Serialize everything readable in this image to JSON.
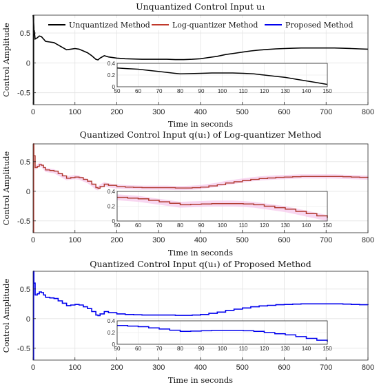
{
  "figure": {
    "panels": [
      {
        "title": "Unquantized Control Input u₁",
        "series_key": "unquantized"
      },
      {
        "title": "Quantized Control Input q(u₁) of Log-quantizer Method",
        "series_key": "log"
      },
      {
        "title": "Quantized Control Input q(u₁) of Proposed Method",
        "series_key": "proposed"
      }
    ]
  },
  "chart_data": [
    {
      "type": "line",
      "title": "Unquantized Control Input u₁",
      "xlabel": "Time in seconds",
      "ylabel": "Control Amplitude",
      "xlim": [
        0,
        800
      ],
      "ylim": [
        -0.7,
        0.8
      ],
      "xticks": [
        0,
        100,
        200,
        300,
        400,
        500,
        600,
        700,
        800
      ],
      "yticks": [
        -0.5,
        0,
        0.5
      ],
      "grid": true,
      "legend": {
        "placement": "top",
        "entries": [
          {
            "name": "Unquantized Method",
            "color": "#000000"
          },
          {
            "name": "Log-quantizer Method",
            "color": "#c0392b"
          },
          {
            "name": "Proposed Method",
            "color": "#0000ee"
          }
        ]
      },
      "series": [
        {
          "name": "Unquantized Method",
          "color": "#000000",
          "x": [
            0,
            2,
            5,
            10,
            15,
            20,
            25,
            30,
            40,
            50,
            60,
            70,
            80,
            90,
            100,
            110,
            120,
            130,
            140,
            150,
            155,
            160,
            170,
            180,
            200,
            220,
            240,
            260,
            280,
            300,
            320,
            340,
            360,
            380,
            400,
            420,
            440,
            460,
            480,
            500,
            520,
            540,
            560,
            580,
            600,
            620,
            640,
            660,
            680,
            700,
            720,
            740,
            760,
            780,
            800
          ],
          "y": [
            0.8,
            0.6,
            0.4,
            0.42,
            0.45,
            0.44,
            0.4,
            0.36,
            0.35,
            0.34,
            0.3,
            0.26,
            0.22,
            0.23,
            0.24,
            0.23,
            0.2,
            0.17,
            0.12,
            0.06,
            0.05,
            0.08,
            0.12,
            0.1,
            0.08,
            0.07,
            0.065,
            0.06,
            0.06,
            0.06,
            0.06,
            0.055,
            0.055,
            0.06,
            0.07,
            0.09,
            0.11,
            0.14,
            0.16,
            0.18,
            0.2,
            0.215,
            0.225,
            0.235,
            0.24,
            0.245,
            0.25,
            0.25,
            0.25,
            0.25,
            0.25,
            0.245,
            0.24,
            0.235,
            0.23
          ]
        }
      ],
      "inset": {
        "xlim": [
          50,
          150
        ],
        "ylim": [
          0,
          0.4
        ],
        "xticks": [
          50,
          60,
          70,
          80,
          90,
          100,
          110,
          120,
          130,
          140,
          150
        ],
        "yticks": [
          0,
          0.2,
          0.4
        ],
        "x": [
          50,
          55,
          60,
          65,
          70,
          75,
          80,
          85,
          90,
          95,
          100,
          105,
          110,
          115,
          120,
          125,
          130,
          135,
          140,
          145,
          150
        ],
        "y": [
          0.32,
          0.31,
          0.3,
          0.28,
          0.26,
          0.24,
          0.22,
          0.225,
          0.23,
          0.235,
          0.235,
          0.235,
          0.23,
          0.22,
          0.2,
          0.18,
          0.16,
          0.13,
          0.1,
          0.07,
          0.04
        ]
      }
    },
    {
      "type": "line",
      "title": "Quantized Control Input q(u₁) of Log-quantizer Method",
      "xlabel": "Time in seconds",
      "ylabel": "Control Amplitude",
      "xlim": [
        0,
        800
      ],
      "ylim": [
        -0.7,
        0.8
      ],
      "xticks": [
        0,
        100,
        200,
        300,
        400,
        500,
        600,
        700,
        800
      ],
      "yticks": [
        -0.5,
        0,
        0.5
      ],
      "grid": true,
      "series": [
        {
          "name": "Log-quantizer Method",
          "color": "#b03a2e",
          "x": [
            0,
            2,
            5,
            10,
            15,
            20,
            25,
            30,
            40,
            50,
            60,
            70,
            80,
            90,
            100,
            110,
            120,
            130,
            140,
            150,
            155,
            160,
            170,
            180,
            200,
            220,
            240,
            260,
            280,
            300,
            320,
            340,
            360,
            380,
            400,
            420,
            440,
            460,
            480,
            500,
            520,
            540,
            560,
            580,
            600,
            620,
            640,
            660,
            680,
            700,
            720,
            740,
            760,
            780,
            800
          ],
          "y": [
            0.8,
            0.6,
            0.4,
            0.42,
            0.45,
            0.44,
            0.4,
            0.36,
            0.35,
            0.34,
            0.3,
            0.26,
            0.22,
            0.23,
            0.24,
            0.23,
            0.2,
            0.17,
            0.12,
            0.06,
            0.05,
            0.08,
            0.12,
            0.1,
            0.08,
            0.07,
            0.065,
            0.06,
            0.06,
            0.06,
            0.06,
            0.055,
            0.055,
            0.06,
            0.07,
            0.09,
            0.11,
            0.14,
            0.16,
            0.18,
            0.2,
            0.215,
            0.225,
            0.235,
            0.24,
            0.245,
            0.25,
            0.25,
            0.25,
            0.25,
            0.25,
            0.245,
            0.24,
            0.235,
            0.23
          ]
        }
      ],
      "inset": {
        "xlim": [
          50,
          150
        ],
        "ylim": [
          0,
          0.4
        ],
        "xticks": [
          50,
          60,
          70,
          80,
          90,
          100,
          110,
          120,
          130,
          140,
          150
        ],
        "yticks": [
          0,
          0.2,
          0.4
        ],
        "x": [
          50,
          55,
          60,
          65,
          70,
          75,
          80,
          85,
          90,
          95,
          100,
          105,
          110,
          115,
          120,
          125,
          130,
          135,
          140,
          145,
          150
        ],
        "y": [
          0.32,
          0.31,
          0.3,
          0.28,
          0.26,
          0.24,
          0.22,
          0.225,
          0.23,
          0.235,
          0.235,
          0.235,
          0.23,
          0.22,
          0.2,
          0.18,
          0.16,
          0.13,
          0.1,
          0.07,
          0.04
        ]
      }
    },
    {
      "type": "line",
      "title": "Quantized Control Input q(u₁) of Proposed Method",
      "xlabel": "Time in seconds",
      "ylabel": "Control Amplitude",
      "xlim": [
        0,
        800
      ],
      "ylim": [
        -0.7,
        0.8
      ],
      "xticks": [
        0,
        100,
        200,
        300,
        400,
        500,
        600,
        700,
        800
      ],
      "yticks": [
        -0.5,
        0,
        0.5
      ],
      "grid": true,
      "series": [
        {
          "name": "Proposed Method",
          "color": "#0000ee",
          "x": [
            0,
            2,
            5,
            10,
            15,
            20,
            25,
            30,
            40,
            50,
            60,
            70,
            80,
            90,
            100,
            110,
            120,
            130,
            140,
            150,
            155,
            160,
            170,
            180,
            200,
            220,
            240,
            260,
            280,
            300,
            320,
            340,
            360,
            380,
            400,
            420,
            440,
            460,
            480,
            500,
            520,
            540,
            560,
            580,
            600,
            620,
            640,
            660,
            680,
            700,
            720,
            740,
            760,
            780,
            800
          ],
          "y": [
            0.8,
            0.6,
            0.4,
            0.42,
            0.45,
            0.44,
            0.4,
            0.36,
            0.35,
            0.34,
            0.3,
            0.26,
            0.22,
            0.23,
            0.24,
            0.23,
            0.2,
            0.17,
            0.12,
            0.06,
            0.05,
            0.08,
            0.12,
            0.1,
            0.08,
            0.07,
            0.065,
            0.06,
            0.06,
            0.06,
            0.06,
            0.055,
            0.055,
            0.06,
            0.07,
            0.09,
            0.11,
            0.14,
            0.16,
            0.18,
            0.2,
            0.215,
            0.225,
            0.235,
            0.24,
            0.245,
            0.25,
            0.25,
            0.25,
            0.25,
            0.25,
            0.245,
            0.24,
            0.235,
            0.23
          ]
        }
      ],
      "inset": {
        "xlim": [
          50,
          150
        ],
        "ylim": [
          0,
          0.4
        ],
        "xticks": [
          50,
          60,
          70,
          80,
          90,
          100,
          110,
          120,
          130,
          140,
          150
        ],
        "yticks": [
          0,
          0.2,
          0.4
        ],
        "x": [
          50,
          55,
          60,
          65,
          70,
          75,
          80,
          85,
          90,
          95,
          100,
          105,
          110,
          115,
          120,
          125,
          130,
          135,
          140,
          145,
          150
        ],
        "y": [
          0.32,
          0.31,
          0.3,
          0.28,
          0.26,
          0.24,
          0.22,
          0.225,
          0.23,
          0.235,
          0.235,
          0.235,
          0.23,
          0.22,
          0.2,
          0.18,
          0.16,
          0.13,
          0.1,
          0.07,
          0.04
        ]
      }
    }
  ]
}
